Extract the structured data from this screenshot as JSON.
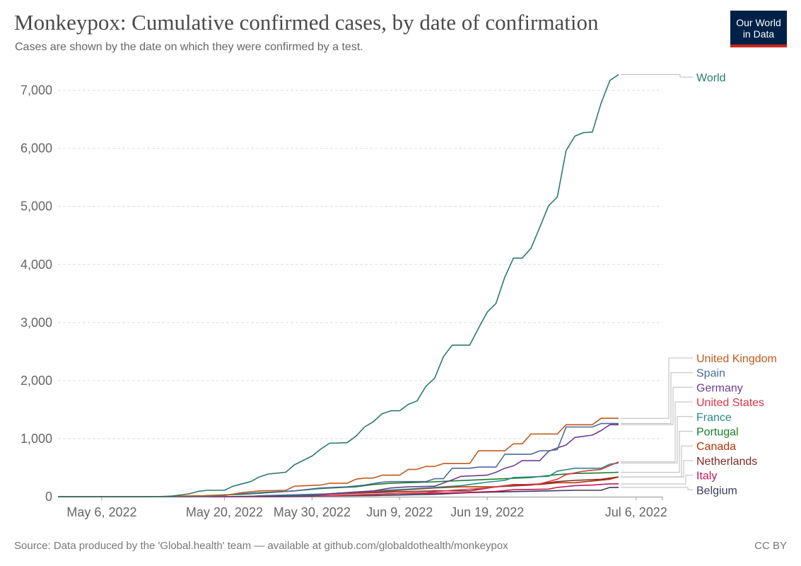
{
  "header": {
    "title": "Monkeypox: Cumulative confirmed cases, by date of confirmation",
    "subtitle": "Cases are shown by the date on which they were confirmed by a test."
  },
  "logo": {
    "line1": "Our World",
    "line2": "in Data",
    "bg_color": "#002147",
    "accent_color": "#ce261e"
  },
  "footer": {
    "source": "Source: Data produced by the 'Global.health' team — available at github.com/globaldothealth/monkeypox",
    "license": "CC BY"
  },
  "chart_data": {
    "type": "line",
    "x_axis": {
      "type": "date",
      "range": [
        "2022-05-01",
        "2022-07-09"
      ],
      "ticks": [
        "2022-05-06",
        "2022-05-20",
        "2022-05-30",
        "2022-06-09",
        "2022-06-19",
        "2022-07-06"
      ],
      "tick_labels": [
        "May 6, 2022",
        "May 20, 2022",
        "May 30, 2022",
        "Jun 9, 2022",
        "Jun 19, 2022",
        "Jul 6, 2022"
      ]
    },
    "y_axis": {
      "range": [
        0,
        7300
      ],
      "ticks": [
        0,
        1000,
        2000,
        3000,
        4000,
        5000,
        6000,
        7000
      ],
      "tick_labels": [
        "0",
        "1,000",
        "2,000",
        "3,000",
        "4,000",
        "5,000",
        "6,000",
        "7,000"
      ],
      "grid": true
    },
    "legend_placement": "right, labels at line ends",
    "series": [
      {
        "name": "World",
        "color": "#2b7a6e",
        "points": [
          [
            "2022-05-01",
            0
          ],
          [
            "2022-05-12",
            0
          ],
          [
            "2022-05-14",
            10
          ],
          [
            "2022-05-16",
            50
          ],
          [
            "2022-05-17",
            90
          ],
          [
            "2022-05-18",
            110
          ],
          [
            "2022-05-20",
            110
          ],
          [
            "2022-05-21",
            180
          ],
          [
            "2022-05-23",
            260
          ],
          [
            "2022-05-24",
            340
          ],
          [
            "2022-05-25",
            390
          ],
          [
            "2022-05-27",
            420
          ],
          [
            "2022-05-28",
            550
          ],
          [
            "2022-05-30",
            700
          ],
          [
            "2022-05-31",
            820
          ],
          [
            "2022-06-01",
            920
          ],
          [
            "2022-06-03",
            930
          ],
          [
            "2022-06-04",
            1040
          ],
          [
            "2022-06-05",
            1200
          ],
          [
            "2022-06-06",
            1290
          ],
          [
            "2022-06-07",
            1430
          ],
          [
            "2022-06-08",
            1480
          ],
          [
            "2022-06-09",
            1480
          ],
          [
            "2022-06-10",
            1590
          ],
          [
            "2022-06-11",
            1650
          ],
          [
            "2022-06-12",
            1900
          ],
          [
            "2022-06-13",
            2040
          ],
          [
            "2022-06-14",
            2410
          ],
          [
            "2022-06-15",
            2610
          ],
          [
            "2022-06-17",
            2610
          ],
          [
            "2022-06-18",
            2900
          ],
          [
            "2022-06-19",
            3180
          ],
          [
            "2022-06-20",
            3330
          ],
          [
            "2022-06-21",
            3780
          ],
          [
            "2022-06-22",
            4110
          ],
          [
            "2022-06-23",
            4110
          ],
          [
            "2022-06-24",
            4280
          ],
          [
            "2022-06-25",
            4640
          ],
          [
            "2022-06-26",
            5010
          ],
          [
            "2022-06-27",
            5160
          ],
          [
            "2022-06-28",
            5960
          ],
          [
            "2022-06-29",
            6210
          ],
          [
            "2022-06-30",
            6270
          ],
          [
            "2022-07-01",
            6280
          ],
          [
            "2022-07-02",
            6780
          ],
          [
            "2022-07-03",
            7170
          ],
          [
            "2022-07-04",
            7270
          ]
        ]
      },
      {
        "name": "United Kingdom",
        "color": "#c15a1e",
        "points": [
          [
            "2022-05-01",
            0
          ],
          [
            "2022-05-13",
            0
          ],
          [
            "2022-05-14",
            10
          ],
          [
            "2022-05-20",
            20
          ],
          [
            "2022-05-22",
            70
          ],
          [
            "2022-05-24",
            100
          ],
          [
            "2022-05-27",
            110
          ],
          [
            "2022-05-28",
            180
          ],
          [
            "2022-05-31",
            200
          ],
          [
            "2022-06-01",
            230
          ],
          [
            "2022-06-03",
            230
          ],
          [
            "2022-06-04",
            300
          ],
          [
            "2022-06-05",
            320
          ],
          [
            "2022-06-06",
            320
          ],
          [
            "2022-06-07",
            370
          ],
          [
            "2022-06-09",
            370
          ],
          [
            "2022-06-10",
            470
          ],
          [
            "2022-06-11",
            470
          ],
          [
            "2022-06-12",
            520
          ],
          [
            "2022-06-13",
            520
          ],
          [
            "2022-06-14",
            570
          ],
          [
            "2022-06-17",
            570
          ],
          [
            "2022-06-18",
            790
          ],
          [
            "2022-06-21",
            790
          ],
          [
            "2022-06-22",
            910
          ],
          [
            "2022-06-23",
            910
          ],
          [
            "2022-06-24",
            1080
          ],
          [
            "2022-06-27",
            1080
          ],
          [
            "2022-06-28",
            1240
          ],
          [
            "2022-07-01",
            1240
          ],
          [
            "2022-07-02",
            1350
          ],
          [
            "2022-07-04",
            1350
          ]
        ]
      },
      {
        "name": "Spain",
        "color": "#4c6a9c",
        "points": [
          [
            "2022-05-01",
            0
          ],
          [
            "2022-05-18",
            0
          ],
          [
            "2022-05-20",
            30
          ],
          [
            "2022-05-24",
            70
          ],
          [
            "2022-05-28",
            100
          ],
          [
            "2022-05-31",
            150
          ],
          [
            "2022-06-03",
            170
          ],
          [
            "2022-06-05",
            200
          ],
          [
            "2022-06-07",
            250
          ],
          [
            "2022-06-08",
            260
          ],
          [
            "2022-06-12",
            260
          ],
          [
            "2022-06-13",
            310
          ],
          [
            "2022-06-14",
            310
          ],
          [
            "2022-06-15",
            490
          ],
          [
            "2022-06-17",
            490
          ],
          [
            "2022-06-18",
            510
          ],
          [
            "2022-06-20",
            510
          ],
          [
            "2022-06-21",
            730
          ],
          [
            "2022-06-24",
            730
          ],
          [
            "2022-06-25",
            790
          ],
          [
            "2022-06-26",
            790
          ],
          [
            "2022-06-27",
            810
          ],
          [
            "2022-06-28",
            1200
          ],
          [
            "2022-07-01",
            1200
          ],
          [
            "2022-07-02",
            1260
          ],
          [
            "2022-07-04",
            1260
          ]
        ]
      },
      {
        "name": "Germany",
        "color": "#6d3e91",
        "points": [
          [
            "2022-05-01",
            0
          ],
          [
            "2022-05-20",
            0
          ],
          [
            "2022-05-24",
            10
          ],
          [
            "2022-05-30",
            20
          ],
          [
            "2022-06-02",
            60
          ],
          [
            "2022-06-06",
            100
          ],
          [
            "2022-06-08",
            150
          ],
          [
            "2022-06-10",
            170
          ],
          [
            "2022-06-13",
            180
          ],
          [
            "2022-06-15",
            290
          ],
          [
            "2022-06-16",
            350
          ],
          [
            "2022-06-19",
            370
          ],
          [
            "2022-06-20",
            420
          ],
          [
            "2022-06-21",
            490
          ],
          [
            "2022-06-22",
            530
          ],
          [
            "2022-06-23",
            620
          ],
          [
            "2022-06-25",
            620
          ],
          [
            "2022-06-26",
            780
          ],
          [
            "2022-06-27",
            840
          ],
          [
            "2022-06-28",
            890
          ],
          [
            "2022-06-29",
            1020
          ],
          [
            "2022-06-30",
            1040
          ],
          [
            "2022-07-01",
            1060
          ],
          [
            "2022-07-02",
            1140
          ],
          [
            "2022-07-03",
            1240
          ],
          [
            "2022-07-04",
            1240
          ]
        ]
      },
      {
        "name": "United States",
        "color": "#dc3545",
        "points": [
          [
            "2022-05-01",
            0
          ],
          [
            "2022-05-22",
            0
          ],
          [
            "2022-05-25",
            10
          ],
          [
            "2022-06-01",
            20
          ],
          [
            "2022-06-08",
            50
          ],
          [
            "2022-06-12",
            70
          ],
          [
            "2022-06-15",
            110
          ],
          [
            "2022-06-19",
            150
          ],
          [
            "2022-06-22",
            200
          ],
          [
            "2022-06-25",
            220
          ],
          [
            "2022-06-27",
            300
          ],
          [
            "2022-06-28",
            380
          ],
          [
            "2022-06-30",
            440
          ],
          [
            "2022-07-02",
            470
          ],
          [
            "2022-07-04",
            600
          ]
        ]
      },
      {
        "name": "France",
        "color": "#2a8a86",
        "points": [
          [
            "2022-05-01",
            0
          ],
          [
            "2022-05-22",
            0
          ],
          [
            "2022-05-25",
            20
          ],
          [
            "2022-06-01",
            50
          ],
          [
            "2022-06-06",
            100
          ],
          [
            "2022-06-10",
            130
          ],
          [
            "2022-06-13",
            160
          ],
          [
            "2022-06-16",
            190
          ],
          [
            "2022-06-19",
            250
          ],
          [
            "2022-06-21",
            280
          ],
          [
            "2022-06-22",
            330
          ],
          [
            "2022-06-26",
            350
          ],
          [
            "2022-06-27",
            440
          ],
          [
            "2022-06-29",
            490
          ],
          [
            "2022-07-02",
            490
          ],
          [
            "2022-07-03",
            560
          ],
          [
            "2022-07-04",
            580
          ]
        ]
      },
      {
        "name": "Portugal",
        "color": "#188028",
        "points": [
          [
            "2022-05-01",
            0
          ],
          [
            "2022-05-16",
            0
          ],
          [
            "2022-05-18",
            20
          ],
          [
            "2022-05-22",
            40
          ],
          [
            "2022-05-25",
            70
          ],
          [
            "2022-05-28",
            100
          ],
          [
            "2022-05-31",
            140
          ],
          [
            "2022-06-04",
            170
          ],
          [
            "2022-06-06",
            210
          ],
          [
            "2022-06-08",
            230
          ],
          [
            "2022-06-12",
            250
          ],
          [
            "2022-06-15",
            270
          ],
          [
            "2022-06-18",
            290
          ],
          [
            "2022-06-21",
            310
          ],
          [
            "2022-06-24",
            330
          ],
          [
            "2022-06-27",
            380
          ],
          [
            "2022-06-29",
            400
          ],
          [
            "2022-07-02",
            410
          ],
          [
            "2022-07-04",
            420
          ]
        ]
      },
      {
        "name": "Canada",
        "color": "#b13507",
        "points": [
          [
            "2022-05-01",
            0
          ],
          [
            "2022-05-22",
            0
          ],
          [
            "2022-05-25",
            20
          ],
          [
            "2022-05-30",
            30
          ],
          [
            "2022-06-02",
            60
          ],
          [
            "2022-06-06",
            80
          ],
          [
            "2022-06-09",
            110
          ],
          [
            "2022-06-13",
            150
          ],
          [
            "2022-06-16",
            170
          ],
          [
            "2022-06-20",
            170
          ],
          [
            "2022-06-22",
            210
          ],
          [
            "2022-06-25",
            210
          ],
          [
            "2022-06-27",
            240
          ],
          [
            "2022-06-29",
            240
          ],
          [
            "2022-07-01",
            270
          ],
          [
            "2022-07-03",
            300
          ],
          [
            "2022-07-04",
            340
          ]
        ]
      },
      {
        "name": "Netherlands",
        "color": "#7f2b2b",
        "points": [
          [
            "2022-05-01",
            0
          ],
          [
            "2022-05-22",
            0
          ],
          [
            "2022-05-25",
            10
          ],
          [
            "2022-06-02",
            50
          ],
          [
            "2022-06-08",
            80
          ],
          [
            "2022-06-13",
            100
          ],
          [
            "2022-06-17",
            100
          ],
          [
            "2022-06-20",
            170
          ],
          [
            "2022-06-24",
            200
          ],
          [
            "2022-06-27",
            260
          ],
          [
            "2022-06-29",
            280
          ],
          [
            "2022-07-02",
            300
          ],
          [
            "2022-07-04",
            340
          ]
        ]
      },
      {
        "name": "Italy",
        "color": "#c2185b",
        "points": [
          [
            "2022-05-01",
            0
          ],
          [
            "2022-05-22",
            0
          ],
          [
            "2022-05-25",
            10
          ],
          [
            "2022-06-02",
            20
          ],
          [
            "2022-06-08",
            50
          ],
          [
            "2022-06-13",
            60
          ],
          [
            "2022-06-16",
            70
          ],
          [
            "2022-06-20",
            90
          ],
          [
            "2022-06-22",
            120
          ],
          [
            "2022-06-26",
            130
          ],
          [
            "2022-06-27",
            160
          ],
          [
            "2022-06-29",
            190
          ],
          [
            "2022-07-01",
            200
          ],
          [
            "2022-07-03",
            220
          ],
          [
            "2022-07-04",
            220
          ]
        ]
      },
      {
        "name": "Belgium",
        "color": "#3b3b5c",
        "points": [
          [
            "2022-05-01",
            0
          ],
          [
            "2022-05-26",
            0
          ],
          [
            "2022-05-30",
            10
          ],
          [
            "2022-06-06",
            20
          ],
          [
            "2022-06-13",
            40
          ],
          [
            "2022-06-17",
            70
          ],
          [
            "2022-06-20",
            80
          ],
          [
            "2022-06-23",
            90
          ],
          [
            "2022-06-26",
            100
          ],
          [
            "2022-06-29",
            110
          ],
          [
            "2022-07-02",
            110
          ],
          [
            "2022-07-03",
            160
          ],
          [
            "2022-07-04",
            160
          ]
        ]
      }
    ]
  }
}
